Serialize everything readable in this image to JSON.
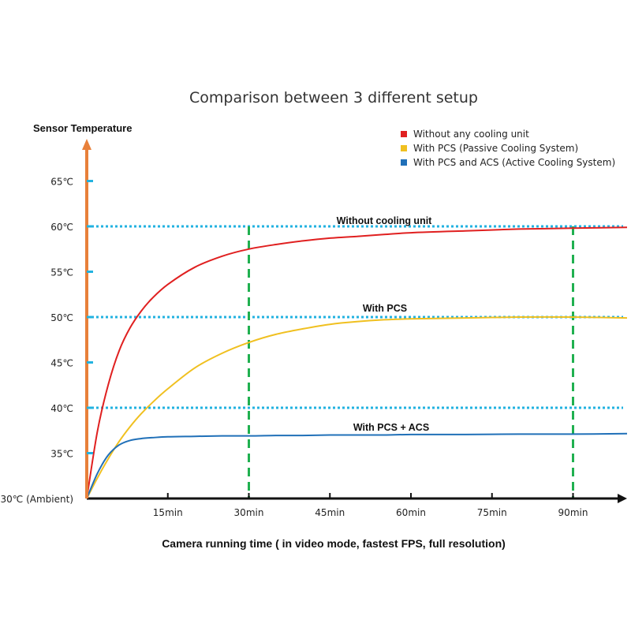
{
  "chart_data": {
    "type": "line",
    "title": "Comparison between 3 different setup",
    "ylabel": "Sensor Temperature",
    "xlabel": "Camera running time ( in video mode, fastest FPS, full resolution)",
    "ylim": [
      30,
      67
    ],
    "xlim": [
      0,
      100
    ],
    "x_ticks": [
      {
        "value": 15,
        "label": "15min"
      },
      {
        "value": 30,
        "label": "30min"
      },
      {
        "value": 45,
        "label": "45min"
      },
      {
        "value": 60,
        "label": "60min"
      },
      {
        "value": 75,
        "label": "75min"
      },
      {
        "value": 90,
        "label": "90min"
      }
    ],
    "y_ticks": [
      {
        "value": 30,
        "label": "30℃ (Ambient)"
      },
      {
        "value": 35,
        "label": "35℃"
      },
      {
        "value": 40,
        "label": "40℃"
      },
      {
        "value": 45,
        "label": "45℃"
      },
      {
        "value": 50,
        "label": "50℃"
      },
      {
        "value": 55,
        "label": "55℃"
      },
      {
        "value": 60,
        "label": "60℃"
      },
      {
        "value": 65,
        "label": "65℃"
      }
    ],
    "x": [
      0,
      2,
      4,
      6,
      8,
      10,
      12,
      15,
      20,
      25,
      30,
      35,
      40,
      45,
      50,
      55,
      60,
      70,
      80,
      90,
      100
    ],
    "series": [
      {
        "name": "Without any cooling unit",
        "color": "#e02020",
        "values": [
          30,
          37.5,
          42.6,
          46.3,
          48.8,
          50.6,
          52.0,
          53.6,
          55.5,
          56.7,
          57.5,
          58.0,
          58.4,
          58.7,
          58.9,
          59.1,
          59.3,
          59.5,
          59.7,
          59.8,
          59.9
        ]
      },
      {
        "name": "With PCS (Passive Cooling System)",
        "color": "#f0c020",
        "values": [
          30,
          32.3,
          34.4,
          36.3,
          37.9,
          39.3,
          40.5,
          42.1,
          44.4,
          46.0,
          47.2,
          48.1,
          48.7,
          49.2,
          49.5,
          49.7,
          49.8,
          49.9,
          50.0,
          50.0,
          49.9
        ]
      },
      {
        "name": "With PCS and ACS (Active Cooling System)",
        "color": "#2070b8",
        "values": [
          30,
          32.8,
          34.8,
          35.9,
          36.4,
          36.6,
          36.7,
          36.8,
          36.85,
          36.9,
          36.9,
          36.95,
          36.95,
          37.0,
          37.0,
          37.0,
          37.05,
          37.05,
          37.1,
          37.1,
          37.15
        ]
      }
    ],
    "reference_lines": [
      {
        "value": 60,
        "label": "Without cooling unit"
      },
      {
        "value": 50,
        "label": "With PCS"
      },
      {
        "value": 40,
        "label": "With PCS + ACS"
      }
    ],
    "vertical_markers": [
      30,
      90
    ],
    "legend_position": "top-right",
    "grid": false,
    "colors": {
      "axis_x": "#111111",
      "axis_y": "#e8803a",
      "reference": "#22b2e0",
      "marker": "#20b050",
      "y_tick": "#22b2e0"
    }
  }
}
